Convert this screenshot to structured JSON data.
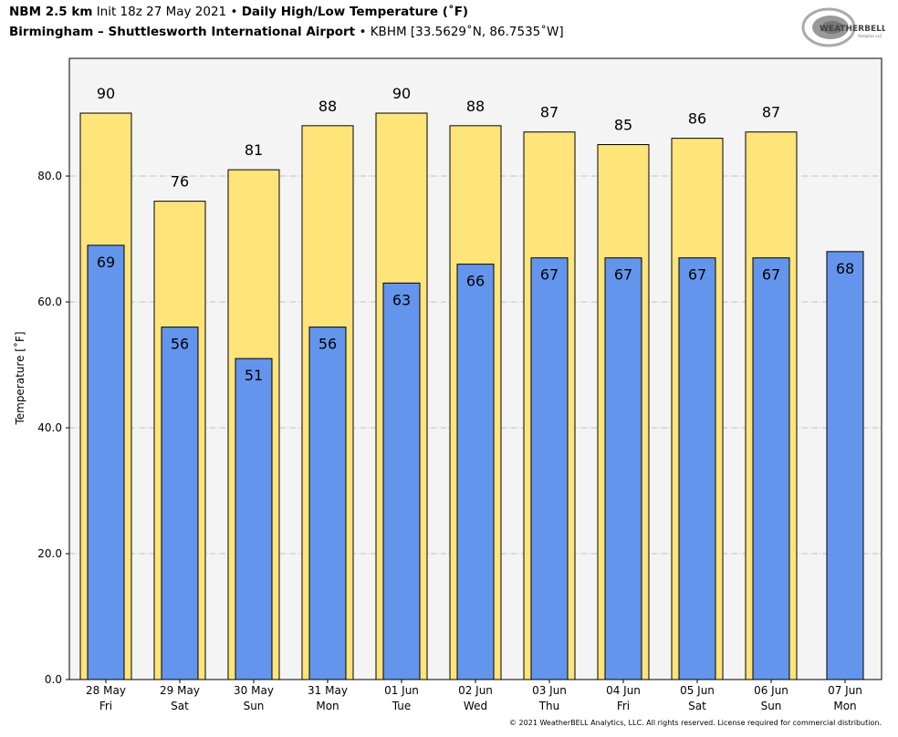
{
  "header": {
    "model": "NBM 2.5 km",
    "init": "Init 18z 27 May 2021",
    "sep": "•",
    "product": "Daily High/Low Temperature (˚F)",
    "station_name": "Birmingham – Shuttlesworth International Airport",
    "station_info": "KBHM [33.5629˚N, 86.7535˚W]"
  },
  "logo": {
    "text": "WeatherBELL",
    "subtext": "Analytics LLC"
  },
  "footer": "© 2021 WeatherBELL Analytics, LLC. All rights reserved. License required for commercial distribution.",
  "colors": {
    "high": "#ffe47a",
    "low": "#6495ed",
    "plot_bg": "#f4f4f4",
    "grid": "#b0b0b0"
  },
  "chart_data": {
    "type": "bar",
    "title": "Daily High/Low Temperature (˚F)",
    "xlabel": "",
    "ylabel": "Temperature [˚F]",
    "ylim": [
      0,
      98.7
    ],
    "yticks": [
      0,
      20,
      40,
      60,
      80
    ],
    "ytick_labels": [
      "0.0",
      "20.0",
      "40.0",
      "60.0",
      "80.0"
    ],
    "grid": true,
    "categories": [
      {
        "date": "28 May",
        "day": "Fri"
      },
      {
        "date": "29 May",
        "day": "Sat"
      },
      {
        "date": "30 May",
        "day": "Sun"
      },
      {
        "date": "31 May",
        "day": "Mon"
      },
      {
        "date": "01 Jun",
        "day": "Tue"
      },
      {
        "date": "02 Jun",
        "day": "Wed"
      },
      {
        "date": "03 Jun",
        "day": "Thu"
      },
      {
        "date": "04 Jun",
        "day": "Fri"
      },
      {
        "date": "05 Jun",
        "day": "Sat"
      },
      {
        "date": "06 Jun",
        "day": "Sun"
      },
      {
        "date": "07 Jun",
        "day": "Mon"
      }
    ],
    "series": [
      {
        "name": "High",
        "values": [
          90,
          76,
          81,
          88,
          90,
          88,
          87,
          85,
          86,
          87,
          null
        ]
      },
      {
        "name": "Low",
        "values": [
          69,
          56,
          51,
          56,
          63,
          66,
          67,
          67,
          67,
          67,
          68
        ]
      }
    ]
  }
}
